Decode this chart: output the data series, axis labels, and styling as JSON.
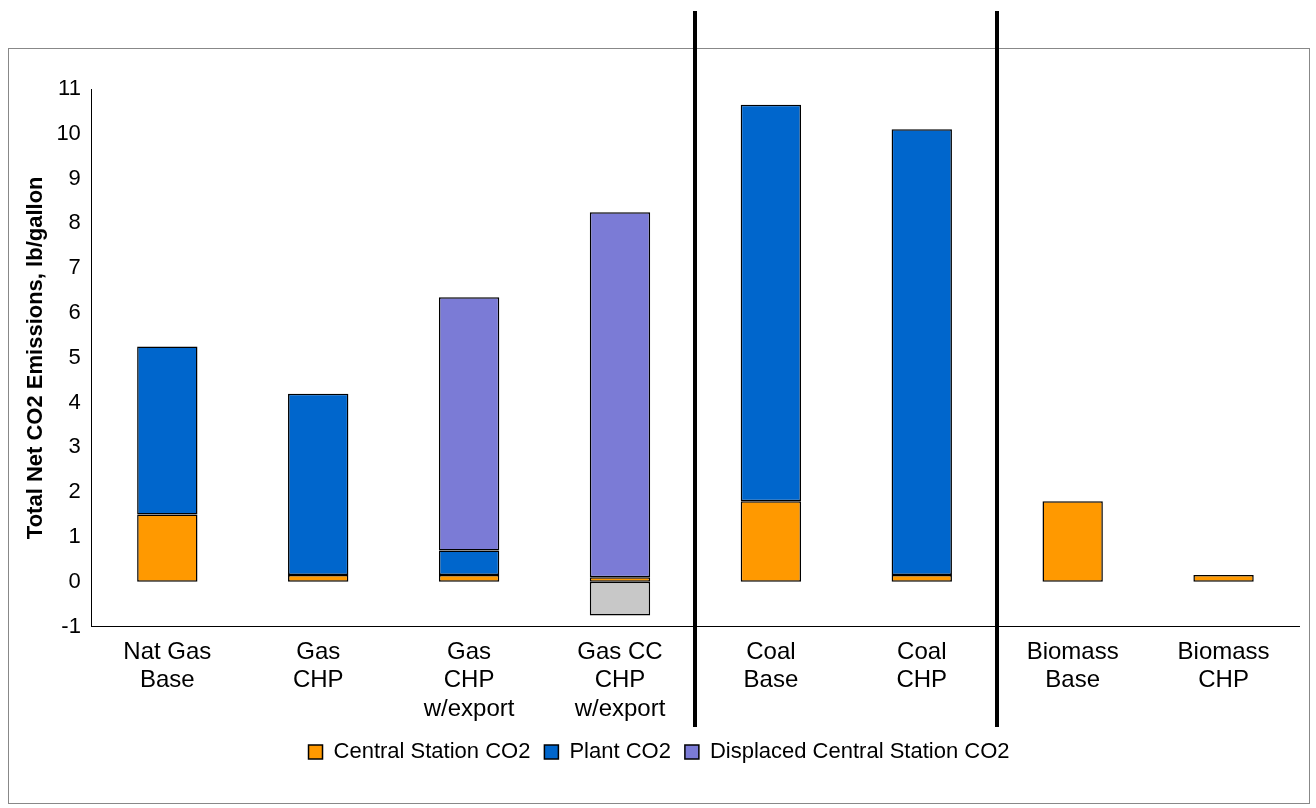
{
  "chart_data": {
    "type": "bar",
    "stacked": true,
    "ylabel": "Total Net CO2 Emissions, lb/gallon",
    "categories": [
      "Nat Gas\nBase",
      "Gas\nCHP",
      "Gas\nCHP\nw/export",
      "Gas CC\nCHP\nw/export",
      "Coal\nBase",
      "Coal\nCHP",
      "Biomass\nBase",
      "Biomass\nCHP"
    ],
    "series": [
      {
        "name": "Central Station CO2",
        "color": "#ff9900",
        "values": [
          1.5,
          0.15,
          0.15,
          0.1,
          1.8,
          0.15,
          1.8,
          0.15
        ]
      },
      {
        "name": "Plant CO2",
        "color": "#0066cc",
        "values": [
          3.75,
          4.05,
          0.55,
          null,
          8.85,
          9.95,
          null,
          null
        ]
      },
      {
        "name": "Displaced Central Station CO2",
        "color": "#7b7bd6",
        "values": [
          null,
          null,
          5.65,
          8.15,
          null,
          null,
          null,
          null
        ]
      },
      {
        "color": "#c8c8c8",
        "values": [
          null,
          null,
          null,
          -0.75,
          null,
          null,
          null,
          null
        ]
      }
    ],
    "ylim": [
      -1,
      11
    ],
    "yticks": [
      -1,
      0,
      1,
      2,
      3,
      4,
      5,
      6,
      7,
      8,
      9,
      10,
      11
    ],
    "grid": false,
    "legend": "bottom"
  }
}
